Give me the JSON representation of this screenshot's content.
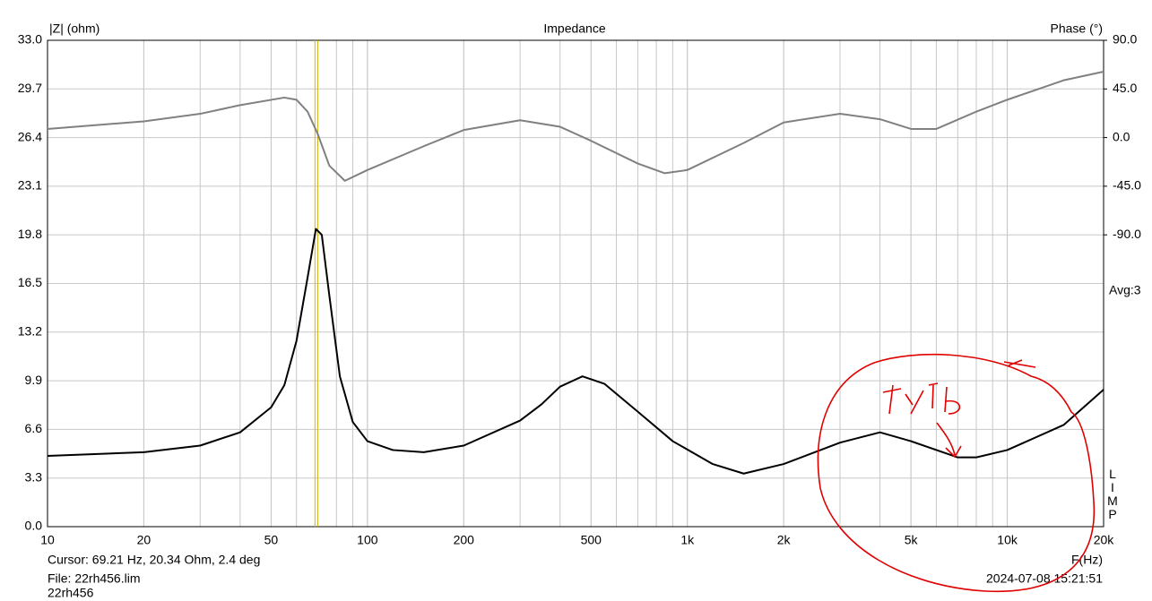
{
  "chart_data": {
    "type": "line",
    "title": "Impedance",
    "y_label": "|Z| (ohm)",
    "y2_label": "Phase (°)",
    "x_label": "F(Hz)",
    "side_label": "LIMP",
    "avg_label": "Avg:3",
    "cursor_text": "Cursor: 69.21 Hz, 20.34 Ohm, 2.4 deg",
    "file_text": "File: 22rh456.lim",
    "name_text": "22rh456",
    "date_text": "2024-07-08 15:21:51",
    "cursor_x": 69.21,
    "cursor_color": "#d4b800",
    "x_scale": "log",
    "xlim": [
      10,
      20000
    ],
    "xticks": [
      10,
      20,
      50,
      100,
      200,
      500,
      {
        "value": 1000,
        "label": "1k"
      },
      {
        "value": 2000,
        "label": "2k"
      },
      {
        "value": 5000,
        "label": "5k"
      },
      {
        "value": 10000,
        "label": "10k"
      },
      {
        "value": 20000,
        "label": "20k"
      }
    ],
    "ylim": [
      0,
      33
    ],
    "yticks": [
      {
        "value": 0,
        "label": "0.0"
      },
      3.3,
      6.6,
      9.9,
      13.2,
      16.5,
      19.8,
      23.1,
      26.4,
      29.7,
      {
        "value": 33,
        "label": "33.0"
      }
    ],
    "y2lim": [
      -360,
      90
    ],
    "y2ticks": [
      {
        "value": -90,
        "label": "-90.0"
      },
      {
        "value": -45,
        "label": "-45.0"
      },
      {
        "value": 0,
        "label": "0.0"
      },
      {
        "value": 45,
        "label": "45.0"
      },
      {
        "value": 90,
        "label": "90.0"
      }
    ],
    "grid": true,
    "minor_grid": true,
    "series": [
      {
        "name": "Impedance",
        "color": "#000000",
        "x": [
          10,
          20,
          30,
          40,
          50,
          55,
          60,
          65,
          69,
          72,
          76,
          82,
          90,
          100,
          120,
          150,
          200,
          300,
          350,
          400,
          470,
          550,
          700,
          900,
          1200,
          1500,
          2000,
          3000,
          4000,
          5000,
          7000,
          8000,
          10000,
          15000,
          20000
        ],
        "values": [
          4.8,
          5.05,
          5.5,
          6.4,
          8.1,
          9.6,
          12.6,
          16.9,
          20.2,
          19.8,
          15.7,
          10.2,
          7.1,
          5.8,
          5.2,
          5.05,
          5.5,
          7.2,
          8.3,
          9.5,
          10.2,
          9.7,
          7.8,
          5.8,
          4.25,
          3.6,
          4.25,
          5.7,
          6.4,
          5.8,
          4.7,
          4.7,
          5.2,
          6.9,
          9.3
        ]
      },
      {
        "name": "Phase",
        "color": "#808080",
        "axis": "y2",
        "x": [
          10,
          20,
          30,
          40,
          55,
          60,
          65,
          70,
          76,
          85,
          100,
          150,
          200,
          300,
          400,
          500,
          700,
          850,
          1000,
          1500,
          2000,
          3000,
          4000,
          5000,
          6000,
          8000,
          10000,
          15000,
          20000
        ],
        "values": [
          8,
          15,
          22,
          30,
          37,
          35,
          24,
          3,
          -26,
          -40,
          -30,
          -8,
          7,
          16,
          10,
          -3,
          -24,
          -33,
          -30,
          -5,
          14,
          22,
          17,
          8,
          8,
          24,
          35,
          53,
          61
        ]
      }
    ]
  }
}
